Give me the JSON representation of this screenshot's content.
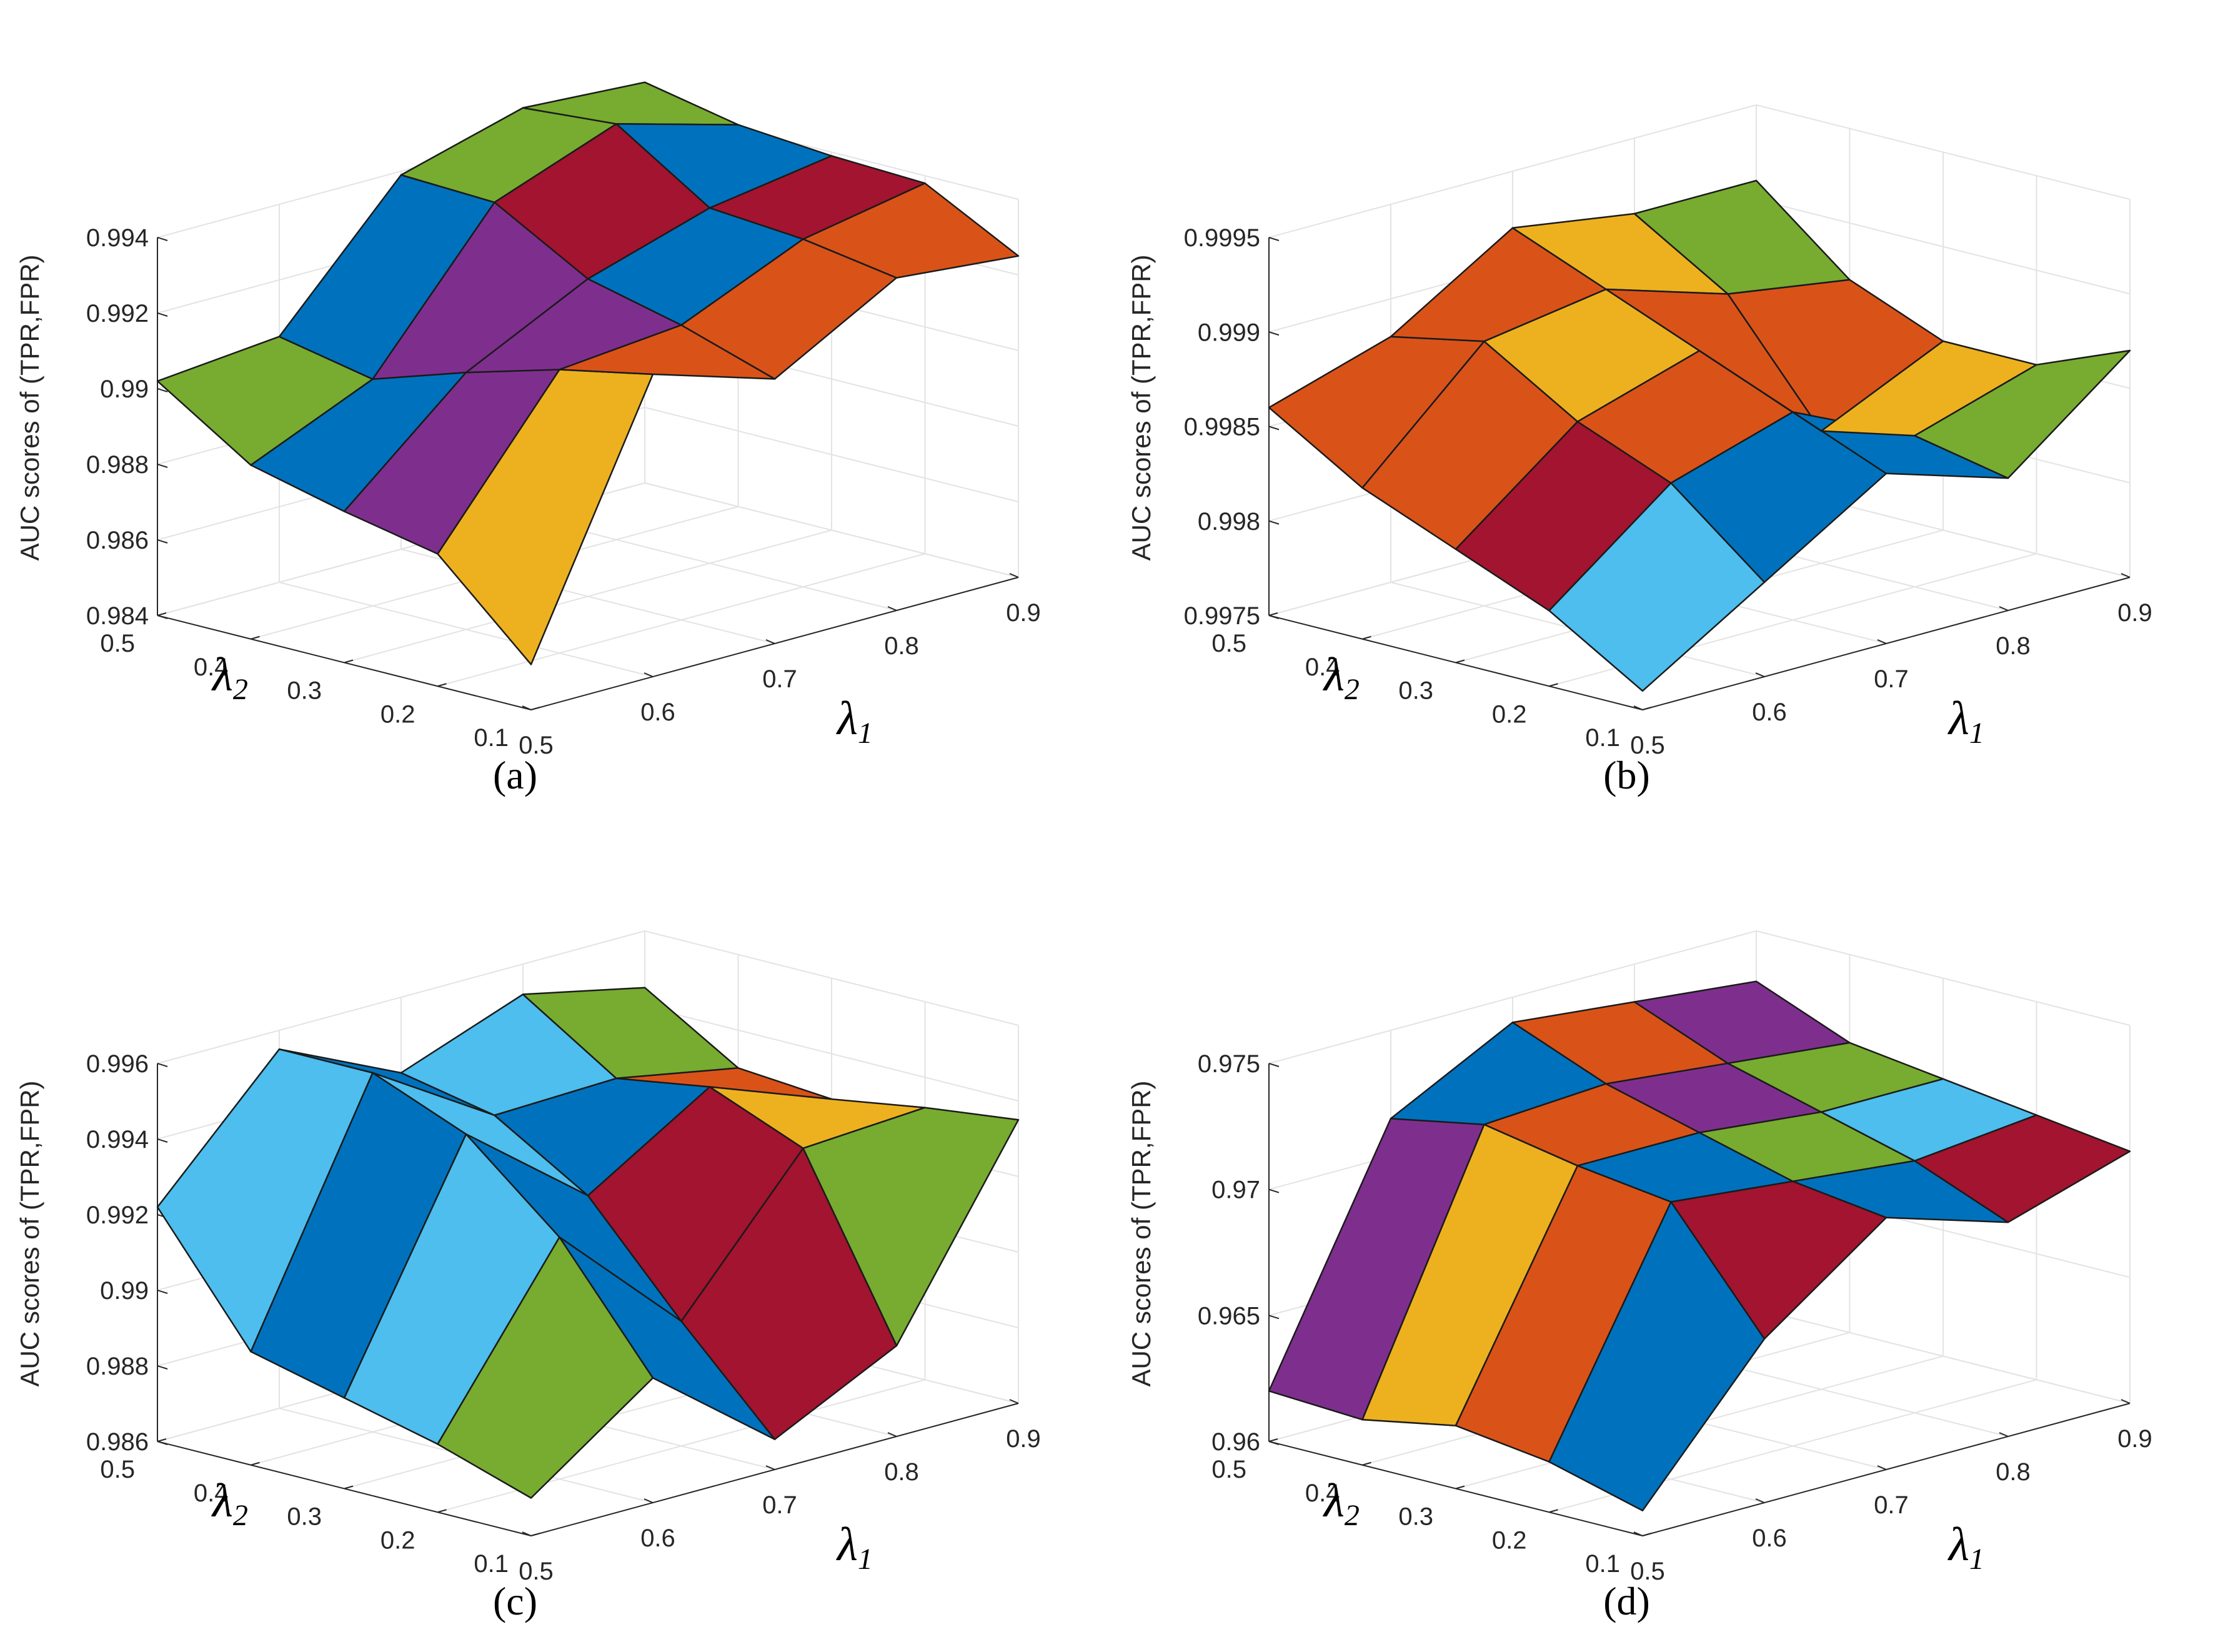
{
  "colors": {
    "blue": "#0072bd",
    "orange": "#d95319",
    "yellow": "#edb120",
    "purple": "#7e2f8e",
    "green": "#77ac30",
    "lightblue": "#4dbeee",
    "red": "#a2142f",
    "edge": "#1a1a1a",
    "grid": "#e3e3e3",
    "axis": "#262626"
  },
  "chart_data": [
    {
      "type": "surface3d",
      "caption": "(a)",
      "zlabel": "AUC scores of (TPR,FPR)",
      "xlabel": "λ1",
      "ylabel": "λ2",
      "x": [
        0.5,
        0.6,
        0.7,
        0.8,
        0.9
      ],
      "y": [
        0.1,
        0.2,
        0.3,
        0.4,
        0.5
      ],
      "x_ticks": [
        "0.5",
        "0.6",
        "0.7",
        "0.8",
        "0.9"
      ],
      "y_ticks": [
        "0.1",
        "0.2",
        "0.3",
        "0.4",
        "0.5"
      ],
      "z_ticks": [
        "0.984",
        "0.986",
        "0.988",
        "0.99",
        "0.992",
        "0.994"
      ],
      "zlim": [
        0.984,
        0.994
      ],
      "z": [
        [
          0.9852,
          0.992,
          0.991,
          0.9928,
          0.9925
        ],
        [
          0.9875,
          0.9915,
          0.9918,
          0.9932,
          0.9938
        ],
        [
          0.988,
          0.9908,
          0.9924,
          0.9934,
          0.9939
        ],
        [
          0.9886,
          0.99,
          0.9938,
          0.995,
          0.9941
        ],
        [
          0.9902,
          0.9905,
          0.9939,
          0.9948,
          0.9946
        ]
      ],
      "face_colors": [
        [
          "yellow",
          "orange",
          "orange",
          "orange"
        ],
        [
          "purple",
          "purple",
          "blue",
          "red"
        ],
        [
          "blue",
          "purple",
          "red",
          "blue"
        ],
        [
          "green",
          "blue",
          "green",
          "green"
        ]
      ]
    },
    {
      "type": "surface3d",
      "caption": "(b)",
      "zlabel": "AUC scores of (TPR,FPR)",
      "xlabel": "λ1",
      "ylabel": "λ2",
      "x": [
        0.5,
        0.6,
        0.7,
        0.8,
        0.9
      ],
      "y": [
        0.1,
        0.2,
        0.3,
        0.4,
        0.5
      ],
      "x_ticks": [
        "0.5",
        "0.6",
        "0.7",
        "0.8",
        "0.9"
      ],
      "y_ticks": [
        "0.1",
        "0.2",
        "0.3",
        "0.4",
        "0.5"
      ],
      "z_ticks": [
        "0.9975",
        "0.998",
        "0.9985",
        "0.999",
        "0.9995"
      ],
      "zlim": [
        0.9975,
        0.9995
      ],
      "z": [
        [
          0.9976,
          0.998,
          0.9984,
          0.9982,
          0.9987
        ],
        [
          0.9979,
          0.9984,
          0.9986,
          0.9983,
          0.9985
        ],
        [
          0.9981,
          0.9986,
          0.9988,
          0.9982,
          0.9985
        ],
        [
          0.9983,
          0.9989,
          0.999,
          0.9988,
          0.9987
        ],
        [
          0.9986,
          0.9988,
          0.9992,
          0.9991,
          0.9991
        ]
      ],
      "face_colors": [
        [
          "lightblue",
          "blue",
          "blue",
          "green"
        ],
        [
          "red",
          "orange",
          "blue",
          "yellow"
        ],
        [
          "orange",
          "yellow",
          "orange",
          "orange"
        ],
        [
          "orange",
          "orange",
          "yellow",
          "green"
        ]
      ]
    },
    {
      "type": "surface3d",
      "caption": "(c)",
      "zlabel": "AUC scores of (TPR,FPR)",
      "xlabel": "λ1",
      "ylabel": "λ2",
      "x": [
        0.5,
        0.6,
        0.7,
        0.8,
        0.9
      ],
      "y": [
        0.1,
        0.2,
        0.3,
        0.4,
        0.5
      ],
      "x_ticks": [
        "0.5",
        "0.6",
        "0.7",
        "0.8",
        "0.9"
      ],
      "y_ticks": [
        "0.1",
        "0.2",
        "0.3",
        "0.4",
        "0.5"
      ],
      "z_ticks": [
        "0.986",
        "0.988",
        "0.99",
        "0.992",
        "0.994",
        "0.996"
      ],
      "zlim": [
        0.986,
        0.996
      ],
      "z": [
        [
          0.987,
          0.9893,
          0.9868,
          0.9884,
          0.9935
        ],
        [
          0.9878,
          0.9924,
          0.9893,
          0.993,
          0.9932
        ],
        [
          0.9884,
          0.9945,
          0.992,
          0.994,
          0.9928
        ],
        [
          0.989,
          0.9955,
          0.9935,
          0.9936,
          0.993
        ],
        [
          0.9922,
          0.9955,
          0.994,
          0.9952,
          0.9945
        ]
      ],
      "face_colors": [
        [
          "green",
          "blue",
          "red",
          "green"
        ],
        [
          "lightblue",
          "blue",
          "red",
          "yellow"
        ],
        [
          "blue",
          "lightblue",
          "blue",
          "orange"
        ],
        [
          "lightblue",
          "blue",
          "lightblue",
          "green"
        ]
      ]
    },
    {
      "type": "surface3d",
      "caption": "(d)",
      "zlabel": "AUC scores of (TPR,FPR)",
      "xlabel": "λ1",
      "ylabel": "λ2",
      "x": [
        0.5,
        0.6,
        0.7,
        0.8,
        0.9
      ],
      "y": [
        0.1,
        0.2,
        0.3,
        0.4,
        0.5
      ],
      "x_ticks": [
        "0.5",
        "0.6",
        "0.7",
        "0.8",
        "0.9"
      ],
      "y_ticks": [
        "0.1",
        "0.2",
        "0.3",
        "0.4",
        "0.5"
      ],
      "z_ticks": [
        "0.96",
        "0.965",
        "0.97",
        "0.975"
      ],
      "zlim": [
        0.96,
        0.975
      ],
      "z": [
        [
          0.961,
          0.9665,
          0.97,
          0.9685,
          0.97
        ],
        [
          0.962,
          0.971,
          0.9705,
          0.97,
          0.9705
        ],
        [
          0.9625,
          0.9715,
          0.9715,
          0.971,
          0.971
        ],
        [
          0.9618,
          0.9722,
          0.9725,
          0.972,
          0.9715
        ],
        [
          0.962,
          0.9715,
          0.974,
          0.9735,
          0.973
        ]
      ],
      "face_colors": [
        [
          "blue",
          "red",
          "blue",
          "red"
        ],
        [
          "orange",
          "blue",
          "green",
          "lightblue"
        ],
        [
          "yellow",
          "orange",
          "purple",
          "green"
        ],
        [
          "purple",
          "blue",
          "orange",
          "purple"
        ]
      ]
    }
  ]
}
